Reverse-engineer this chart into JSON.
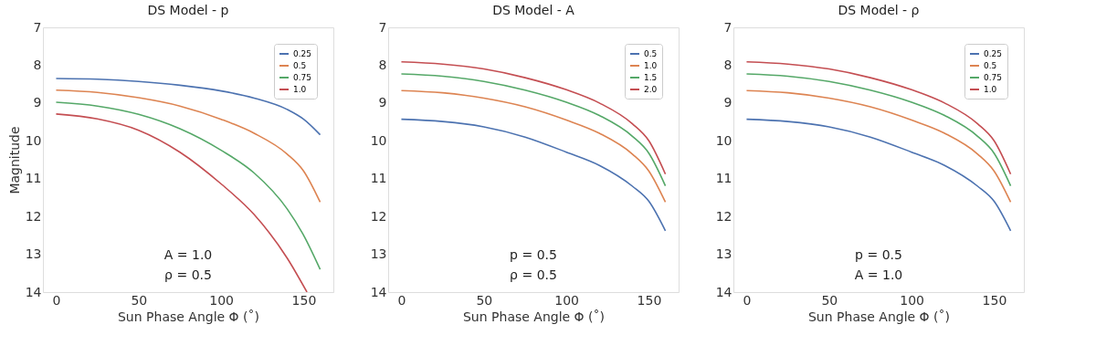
{
  "chart_data": [
    {
      "type": "line",
      "title": "DS Model - p",
      "xlabel": "Sun Phase Angle Φ (˚)",
      "ylabel": "Magnitude",
      "x": [
        0,
        25,
        50,
        75,
        100,
        120,
        140,
        150,
        160
      ],
      "xlim": [
        -8,
        168
      ],
      "xticks": [
        0,
        50,
        100,
        150
      ],
      "ylim": [
        14,
        7
      ],
      "yticks": [
        7,
        8,
        9,
        10,
        11,
        12,
        13,
        14
      ],
      "grid": false,
      "legend": "top right",
      "annotations": [
        "A = 1.0",
        "ρ = 0.5"
      ],
      "series": [
        {
          "name": "0.25",
          "color": "#4c72b0",
          "values": [
            8.35,
            8.37,
            8.43,
            8.53,
            8.68,
            8.87,
            9.17,
            9.43,
            9.84
          ]
        },
        {
          "name": "0.5",
          "color": "#dd8452",
          "values": [
            8.66,
            8.72,
            8.86,
            9.08,
            9.43,
            9.8,
            10.35,
            10.8,
            11.62
          ]
        },
        {
          "name": "0.75",
          "color": "#55a868",
          "values": [
            8.98,
            9.08,
            9.3,
            9.68,
            10.25,
            10.85,
            11.8,
            12.5,
            13.4
          ]
        },
        {
          "name": "1.0",
          "color": "#c44e52",
          "x": [
            0,
            25,
            50,
            75,
            100,
            120,
            140,
            152
          ],
          "values": [
            9.29,
            9.42,
            9.72,
            10.3,
            11.14,
            11.95,
            13.1,
            14.0
          ]
        }
      ]
    },
    {
      "type": "line",
      "title": "DS Model - A",
      "xlabel": "Sun Phase Angle Φ (˚)",
      "x": [
        0,
        25,
        50,
        75,
        100,
        120,
        140,
        150,
        160
      ],
      "xlim": [
        -8,
        168
      ],
      "xticks": [
        0,
        50,
        100,
        150
      ],
      "ylim": [
        14,
        7
      ],
      "yticks": [
        7,
        8,
        9,
        10,
        11,
        12,
        13,
        14
      ],
      "grid": false,
      "legend": "top right",
      "annotations": [
        "p = 0.5",
        "ρ = 0.5"
      ],
      "series": [
        {
          "name": "0.5",
          "color": "#4c72b0",
          "values": [
            9.43,
            9.49,
            9.63,
            9.9,
            10.3,
            10.65,
            11.2,
            11.6,
            12.38
          ]
        },
        {
          "name": "1.0",
          "color": "#dd8452",
          "values": [
            8.67,
            8.73,
            8.87,
            9.1,
            9.45,
            9.8,
            10.35,
            10.8,
            11.62
          ]
        },
        {
          "name": "1.5",
          "color": "#55a868",
          "values": [
            8.23,
            8.29,
            8.43,
            8.66,
            8.98,
            9.33,
            9.88,
            10.33,
            11.19
          ]
        },
        {
          "name": "2.0",
          "color": "#c44e52",
          "values": [
            7.91,
            7.97,
            8.1,
            8.33,
            8.65,
            9.0,
            9.55,
            10.0,
            10.88
          ]
        }
      ]
    },
    {
      "type": "line",
      "title": "DS Model - ρ",
      "xlabel": "Sun Phase Angle Φ (˚)",
      "x": [
        0,
        25,
        50,
        75,
        100,
        120,
        140,
        150,
        160
      ],
      "xlim": [
        -8,
        168
      ],
      "xticks": [
        0,
        50,
        100,
        150
      ],
      "ylim": [
        14,
        7
      ],
      "yticks": [
        7,
        8,
        9,
        10,
        11,
        12,
        13,
        14
      ],
      "grid": false,
      "legend": "top right",
      "annotations": [
        "p = 0.5",
        "A = 1.0"
      ],
      "series": [
        {
          "name": "0.25",
          "color": "#4c72b0",
          "values": [
            9.43,
            9.49,
            9.63,
            9.9,
            10.3,
            10.65,
            11.2,
            11.6,
            12.38
          ]
        },
        {
          "name": "0.5",
          "color": "#dd8452",
          "values": [
            8.67,
            8.73,
            8.87,
            9.1,
            9.45,
            9.8,
            10.35,
            10.8,
            11.62
          ]
        },
        {
          "name": "0.75",
          "color": "#55a868",
          "values": [
            8.23,
            8.29,
            8.43,
            8.66,
            8.98,
            9.33,
            9.88,
            10.33,
            11.19
          ]
        },
        {
          "name": "1.0",
          "color": "#c44e52",
          "values": [
            7.91,
            7.97,
            8.1,
            8.33,
            8.65,
            9.0,
            9.55,
            10.0,
            10.88
          ]
        }
      ]
    }
  ]
}
